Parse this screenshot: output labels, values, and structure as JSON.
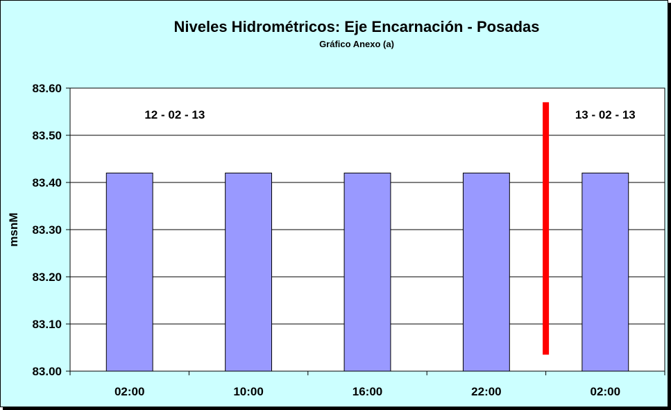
{
  "chart_data": {
    "type": "bar",
    "title": "Niveles Hidrométricos: Eje Encarnación - Posadas",
    "subtitle": "Gráfico Anexo (a)",
    "ylabel": "msnM",
    "xlabel": "",
    "categories": [
      "02:00",
      "10:00",
      "16:00",
      "22:00",
      "02:00"
    ],
    "values": [
      83.42,
      83.42,
      83.42,
      83.42,
      83.42
    ],
    "ylim": [
      83.0,
      83.6
    ],
    "yticks": [
      "83.60",
      "83.50",
      "83.40",
      "83.30",
      "83.20",
      "83.10",
      "83.00"
    ],
    "grid": true,
    "annotations": [
      {
        "text": "12 - 02 - 13"
      },
      {
        "text": "13 - 02 - 13"
      }
    ],
    "divider": {
      "between_categories": [
        3,
        4
      ],
      "y_from": 83.035,
      "y_to": 83.57,
      "color": "#ff0000"
    },
    "colors": {
      "bar": "#9999ff",
      "background": "#ccffff",
      "plot_area": "#ffffff",
      "divider": "#ff0000"
    }
  }
}
